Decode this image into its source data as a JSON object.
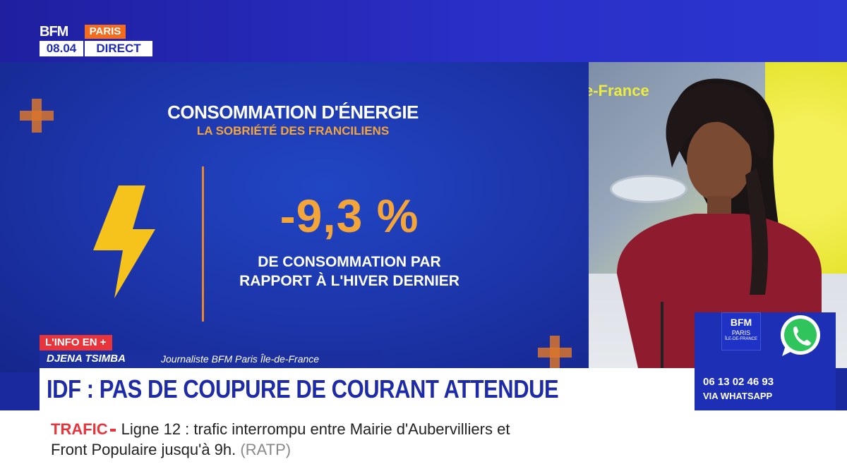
{
  "channel": {
    "brand": "BFM",
    "city": "PARIS",
    "time": "08.04",
    "live_label": "DIRECT"
  },
  "infographic": {
    "title": "CONSOMMATION D'ÉNERGIE",
    "subtitle": "LA SOBRIÉTÉ DES FRANCILIENS",
    "value": "-9,3 %",
    "value_description_line1": "DE CONSOMMATION PAR",
    "value_description_line2": "RAPPORT À L'HIVER DERNIER",
    "icon": "lightning-bolt-icon",
    "accent_color": "#f4a53a"
  },
  "studio": {
    "screen_text": "e-France"
  },
  "lower_third": {
    "tag": "L'INFO EN +",
    "name": "DJENA TSIMBA",
    "role": "Journaliste BFM Paris Île-de-France",
    "headline": "IDF : PAS DE COUPURE DE COURANT ATTENDUE"
  },
  "contact": {
    "logo_line1": "BFM",
    "logo_line2": "PARIS",
    "logo_line3": "ÎLE-DE-FRANCE",
    "phone": "06 13 02 46 93",
    "via": "VIA WHATSAPP",
    "icon": "whatsapp-icon"
  },
  "ticker": {
    "label": "TRAFIC",
    "text_line1": "Ligne 12 :  trafic interrompu entre Mairie d'Aubervilliers et",
    "text_line2": "Front Populaire jusqu'à 9h.",
    "source": "(RATP)"
  }
}
